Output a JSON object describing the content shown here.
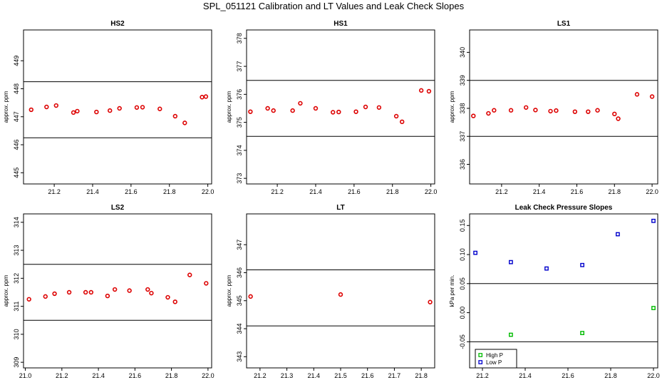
{
  "title": "SPL_051121  Calibration and LT Values and Leak Check Slopes",
  "chart_data": [
    {
      "type": "scatter",
      "title": "HS2",
      "ylabel": "approx. ppm",
      "xlim": [
        21.04,
        22.02
      ],
      "ylim": [
        444.6,
        450.1
      ],
      "xticks": [
        21.2,
        21.4,
        21.6,
        21.8,
        22.0
      ],
      "xtick_labels": [
        "21.2",
        "21.4",
        "21.6",
        "21.8",
        "22.0"
      ],
      "yticks": [
        445,
        446,
        447,
        448,
        449
      ],
      "ytick_labels": [
        "445",
        "446",
        "447",
        "448",
        "449"
      ],
      "hlines": [
        448.25,
        446.25
      ],
      "series": [
        {
          "color": "#dd0000",
          "shape": "circle",
          "x": [
            21.08,
            21.16,
            21.21,
            21.3,
            21.32,
            21.42,
            21.49,
            21.54,
            21.63,
            21.66,
            21.75,
            21.83,
            21.88,
            21.97,
            21.99
          ],
          "y": [
            447.25,
            447.35,
            447.4,
            447.15,
            447.2,
            447.17,
            447.22,
            447.3,
            447.33,
            447.34,
            447.28,
            447.02,
            446.78,
            447.7,
            447.72
          ]
        }
      ]
    },
    {
      "type": "scatter",
      "title": "HS1",
      "ylabel": "approx. ppm",
      "xlim": [
        21.04,
        22.02
      ],
      "ylim": [
        372.8,
        378.3
      ],
      "xticks": [
        21.2,
        21.4,
        21.6,
        21.8,
        22.0
      ],
      "xtick_labels": [
        "21.2",
        "21.4",
        "21.6",
        "21.8",
        "22.0"
      ],
      "yticks": [
        373,
        374,
        375,
        376,
        377,
        378
      ],
      "ytick_labels": [
        "373",
        "374",
        "375",
        "376",
        "377",
        "378"
      ],
      "hlines": [
        376.5,
        374.5
      ],
      "series": [
        {
          "color": "#dd0000",
          "shape": "circle",
          "x": [
            21.06,
            21.15,
            21.18,
            21.28,
            21.32,
            21.4,
            21.49,
            21.52,
            21.61,
            21.66,
            21.73,
            21.82,
            21.85,
            21.95,
            21.99
          ],
          "y": [
            375.38,
            375.5,
            375.42,
            375.42,
            375.68,
            375.5,
            375.36,
            375.37,
            375.38,
            375.55,
            375.53,
            375.22,
            375.02,
            376.14,
            376.11
          ]
        }
      ]
    },
    {
      "type": "scatter",
      "title": "LS1",
      "ylabel": "approx. ppm",
      "xlim": [
        21.03,
        22.03
      ],
      "ylim": [
        335.3,
        340.8
      ],
      "xticks": [
        21.2,
        21.4,
        21.6,
        21.8,
        22.0
      ],
      "xtick_labels": [
        "21.2",
        "21.4",
        "21.6",
        "21.8",
        "22.0"
      ],
      "yticks": [
        336,
        337,
        338,
        339,
        340
      ],
      "ytick_labels": [
        "336",
        "337",
        "338",
        "339",
        "340"
      ],
      "hlines": [
        339.0,
        337.0
      ],
      "series": [
        {
          "color": "#dd0000",
          "shape": "circle",
          "x": [
            21.05,
            21.13,
            21.16,
            21.25,
            21.33,
            21.38,
            21.46,
            21.49,
            21.59,
            21.66,
            21.71,
            21.8,
            21.82,
            21.92,
            22.0
          ],
          "y": [
            337.73,
            337.82,
            337.93,
            337.93,
            338.03,
            337.94,
            337.9,
            337.92,
            337.88,
            337.88,
            337.93,
            337.8,
            337.63,
            338.5,
            338.42
          ]
        }
      ]
    },
    {
      "type": "scatter",
      "title": "LS2",
      "ylabel": "approx. ppm",
      "xlim": [
        20.99,
        22.02
      ],
      "ylim": [
        308.8,
        314.3
      ],
      "xticks": [
        21.0,
        21.2,
        21.4,
        21.6,
        21.8,
        22.0
      ],
      "xtick_labels": [
        "21.0",
        "21.2",
        "21.4",
        "21.6",
        "21.8",
        "22.0"
      ],
      "yticks": [
        309,
        310,
        311,
        312,
        313,
        314
      ],
      "ytick_labels": [
        "309",
        "310",
        "311",
        "312",
        "313",
        "314"
      ],
      "hlines": [
        312.5,
        310.5
      ],
      "series": [
        {
          "color": "#dd0000",
          "shape": "circle",
          "x": [
            21.02,
            21.11,
            21.16,
            21.24,
            21.33,
            21.36,
            21.45,
            21.49,
            21.57,
            21.67,
            21.69,
            21.78,
            21.82,
            21.9,
            21.99
          ],
          "y": [
            311.25,
            311.35,
            311.45,
            311.5,
            311.5,
            311.5,
            311.37,
            311.6,
            311.56,
            311.6,
            311.47,
            311.32,
            311.16,
            312.12,
            311.82
          ]
        }
      ]
    },
    {
      "type": "scatter",
      "title": "LT",
      "ylabel": "approx. ppm",
      "xlim": [
        21.15,
        21.85
      ],
      "ylim": [
        342.6,
        348.1
      ],
      "xticks": [
        21.2,
        21.3,
        21.4,
        21.5,
        21.6,
        21.7,
        21.8
      ],
      "xtick_labels": [
        "21.2",
        "21.3",
        "21.4",
        "21.5",
        "21.6",
        "21.7",
        "21.8"
      ],
      "yticks": [
        343,
        344,
        345,
        346,
        347
      ],
      "ytick_labels": [
        "343",
        "344",
        "345",
        "346",
        "347"
      ],
      "hlines": [
        346.1,
        344.1
      ],
      "series": [
        {
          "color": "#dd0000",
          "shape": "circle",
          "x": [
            21.165,
            21.5,
            21.833
          ],
          "y": [
            345.15,
            345.22,
            344.95
          ]
        }
      ]
    },
    {
      "type": "scatter",
      "title": "Leak Check Pressure Slopes",
      "ylabel": "kPa per min.",
      "xlim": [
        21.14,
        22.02
      ],
      "ylim": [
        -0.095,
        0.17
      ],
      "xticks": [
        21.2,
        21.4,
        21.6,
        21.8,
        22.0
      ],
      "xtick_labels": [
        "21.2",
        "21.4",
        "21.6",
        "21.8",
        "22.0"
      ],
      "yticks": [
        -0.05,
        0.0,
        0.05,
        0.1,
        0.15
      ],
      "ytick_labels": [
        "-0.05",
        "0.00",
        "0.05",
        "0.10",
        "0.15"
      ],
      "hlines": [
        0.05,
        -0.05
      ],
      "legend": {
        "position": "bottom-left"
      },
      "series": [
        {
          "name": "High P",
          "color": "#00bb00",
          "shape": "square",
          "x": [
            21.333,
            21.667,
            22.0
          ],
          "y": [
            -0.038,
            -0.035,
            0.008
          ]
        },
        {
          "name": "Low P",
          "color": "#0000cc",
          "shape": "square",
          "x": [
            21.167,
            21.333,
            21.5,
            21.667,
            21.833,
            22.0
          ],
          "y": [
            0.103,
            0.087,
            0.076,
            0.082,
            0.135,
            0.158
          ]
        }
      ]
    }
  ]
}
